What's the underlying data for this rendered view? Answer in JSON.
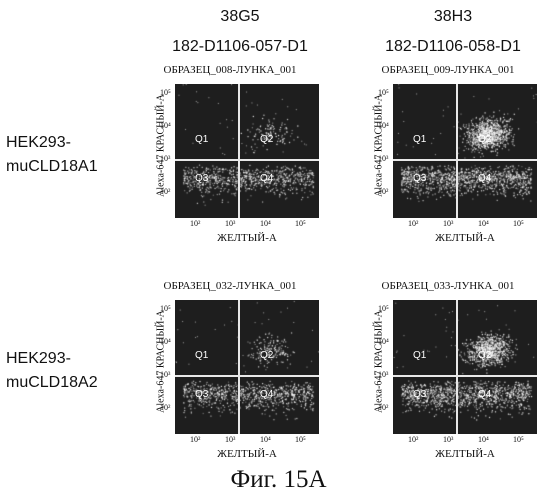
{
  "columns": [
    {
      "line1": "38G5",
      "line2": "182-D1106-057-D1"
    },
    {
      "line1": "38H3",
      "line2": "182-D1106-058-D1"
    }
  ],
  "rows": [
    {
      "line1": "HEK293-",
      "line2": "muCLD18A1"
    },
    {
      "line1": "HEK293-",
      "line2": "muCLD18A2"
    }
  ],
  "panels": [
    {
      "title": "ОБРАЗЕЦ_008-ЛУНКА_001",
      "density": 0.2,
      "upper": 0.05
    },
    {
      "title": "ОБРАЗЕЦ_009-ЛУНКА_001",
      "density": 0.9,
      "upper": 0.75
    },
    {
      "title": "ОБРАЗЕЦ_032-ЛУНКА_001",
      "density": 0.3,
      "upper": 0.08
    },
    {
      "title": "ОБРАЗЕЦ_033-ЛУНКА_001",
      "density": 0.8,
      "upper": 0.6
    }
  ],
  "axis": {
    "ylabel": "Alexa-647 КРАСНЫЙ-А",
    "xlabel": "ЖЕЛТЫЙ-А",
    "yticks": [
      "10⁵",
      "10⁴",
      "10³",
      "10²"
    ],
    "xticks": [
      "10²",
      "10³",
      "10⁴",
      "10⁵"
    ]
  },
  "quadrants": {
    "q1": "Q1",
    "q2": "Q2",
    "q3": "Q3",
    "q4": "Q4"
  },
  "caption": "Фиг. 15А"
}
